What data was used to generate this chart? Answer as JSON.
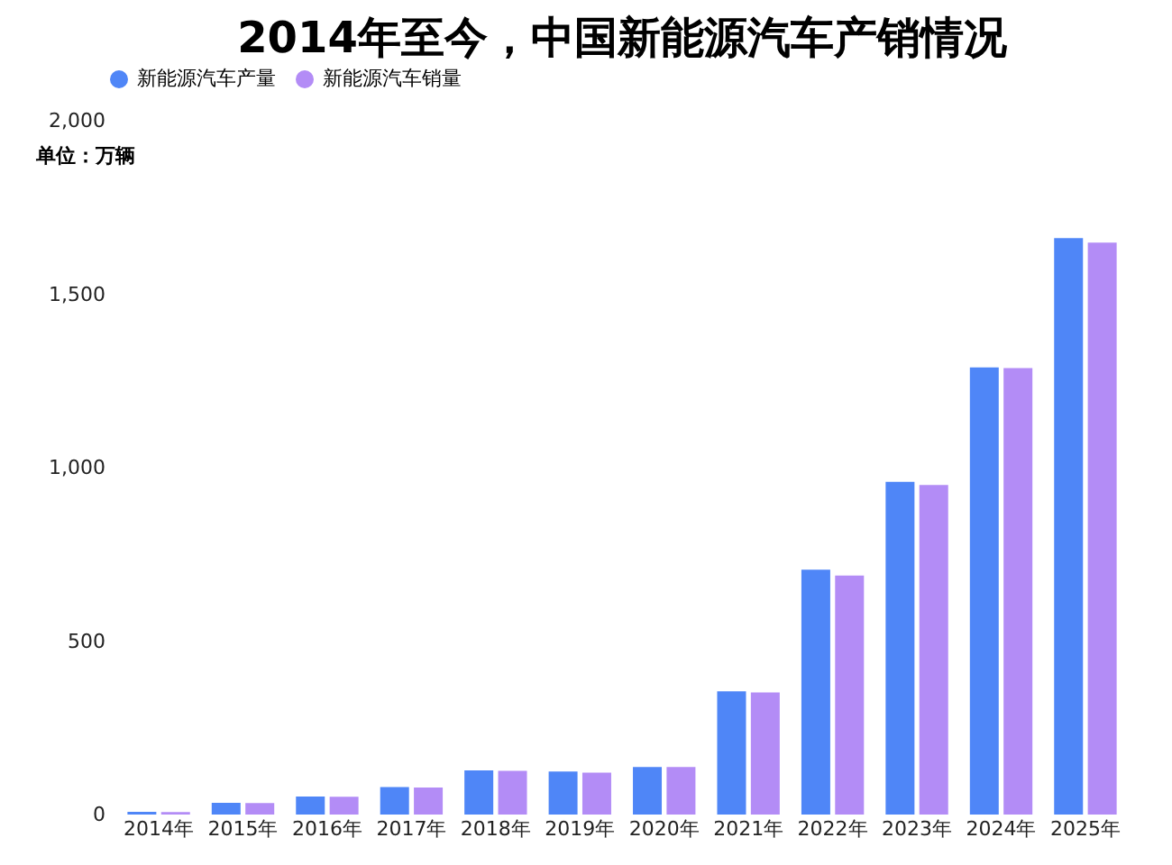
{
  "chart_data": {
    "type": "bar",
    "title": "2014年至今，中国新能源汽车产销情况",
    "categories": [
      "2014年",
      "2015年",
      "2016年",
      "2017年",
      "2018年",
      "2019年",
      "2020年",
      "2021年",
      "2022年",
      "2023年",
      "2024年",
      "2025年"
    ],
    "series": [
      {
        "name": "新能源汽车产量",
        "color": "#4f86f7",
        "values": [
          8,
          34,
          52,
          79,
          127,
          124,
          137,
          355,
          706,
          959,
          1289,
          1662
        ]
      },
      {
        "name": "新能源汽车销量",
        "color": "#b38cf6",
        "values": [
          7,
          33,
          51,
          78,
          126,
          121,
          137,
          352,
          689,
          950,
          1287,
          1649
        ]
      }
    ],
    "ylim": [
      0,
      2000
    ],
    "yticks": [
      0,
      {
        "value": 500,
        "label": "500"
      },
      {
        "value": 1000,
        "label": "1,000"
      },
      {
        "value": 1500,
        "label": "1,500"
      },
      {
        "value": 2000,
        "label": "2,000"
      }
    ],
    "annotations": [
      "单位：万辆"
    ],
    "legend": "top",
    "grid": false
  }
}
